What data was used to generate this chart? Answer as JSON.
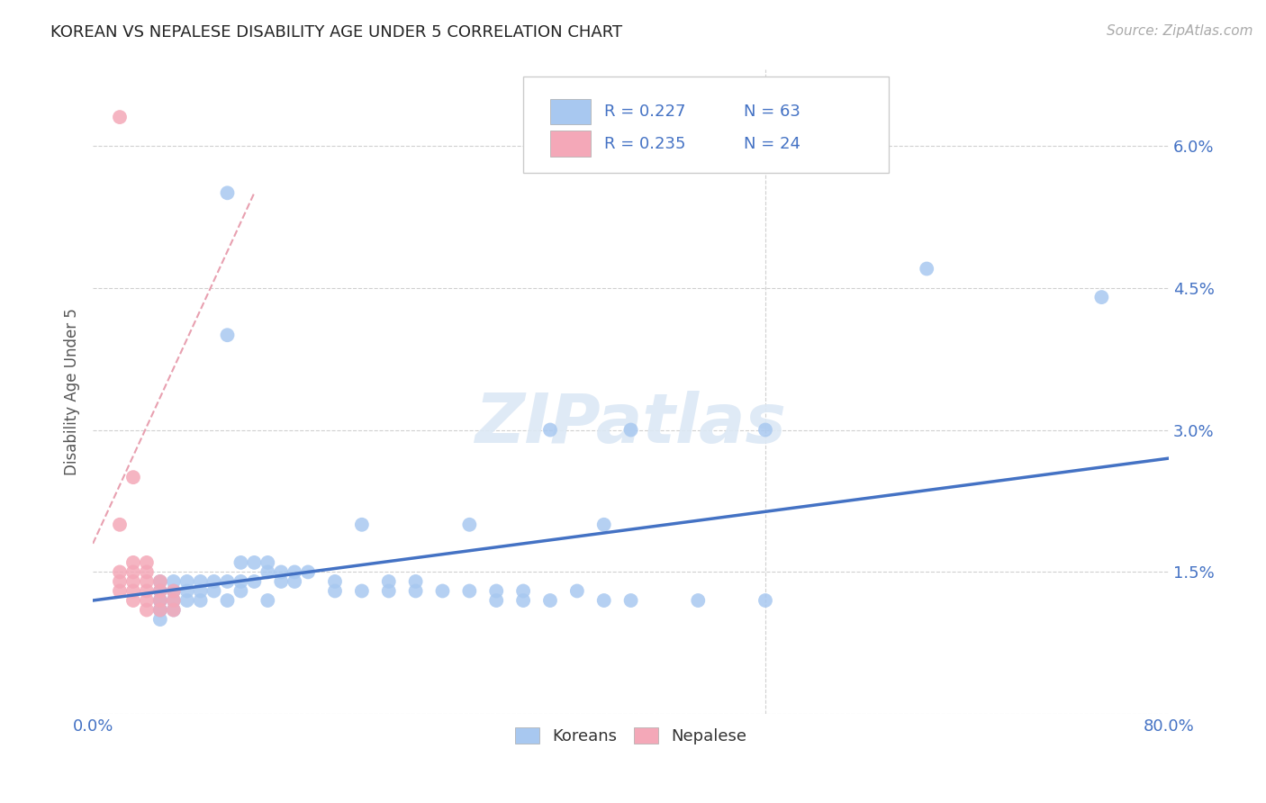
{
  "title": "KOREAN VS NEPALESE DISABILITY AGE UNDER 5 CORRELATION CHART",
  "source": "Source: ZipAtlas.com",
  "ylabel": "Disability Age Under 5",
  "xlim": [
    0.0,
    0.8
  ],
  "ylim": [
    0.0,
    0.068
  ],
  "yticks": [
    0.0,
    0.015,
    0.03,
    0.045,
    0.06
  ],
  "ytick_labels": [
    "",
    "1.5%",
    "3.0%",
    "4.5%",
    "6.0%"
  ],
  "xticks": [
    0.0,
    0.2,
    0.4,
    0.6,
    0.8
  ],
  "xtick_labels": [
    "0.0%",
    "",
    "",
    "",
    "80.0%"
  ],
  "korean_color": "#a8c8f0",
  "nepalese_color": "#f4a8b8",
  "trendline_korean_color": "#4472c4",
  "trendline_nepalese_color": "#e8a0b0",
  "background_color": "#ffffff",
  "watermark": "ZIPatlas",
  "korean_x": [
    0.05,
    0.05,
    0.05,
    0.05,
    0.05,
    0.05,
    0.05,
    0.06,
    0.06,
    0.06,
    0.06,
    0.07,
    0.07,
    0.07,
    0.08,
    0.08,
    0.08,
    0.09,
    0.09,
    0.1,
    0.1,
    0.1,
    0.1,
    0.11,
    0.11,
    0.11,
    0.12,
    0.12,
    0.13,
    0.13,
    0.13,
    0.14,
    0.14,
    0.15,
    0.15,
    0.16,
    0.18,
    0.18,
    0.2,
    0.2,
    0.22,
    0.22,
    0.24,
    0.24,
    0.26,
    0.28,
    0.28,
    0.3,
    0.3,
    0.32,
    0.32,
    0.34,
    0.34,
    0.36,
    0.38,
    0.38,
    0.4,
    0.4,
    0.45,
    0.5,
    0.5,
    0.62,
    0.75
  ],
  "korean_y": [
    0.014,
    0.013,
    0.012,
    0.012,
    0.011,
    0.011,
    0.01,
    0.014,
    0.013,
    0.012,
    0.011,
    0.014,
    0.013,
    0.012,
    0.014,
    0.013,
    0.012,
    0.014,
    0.013,
    0.055,
    0.04,
    0.014,
    0.012,
    0.016,
    0.014,
    0.013,
    0.016,
    0.014,
    0.016,
    0.015,
    0.012,
    0.015,
    0.014,
    0.015,
    0.014,
    0.015,
    0.014,
    0.013,
    0.02,
    0.013,
    0.014,
    0.013,
    0.014,
    0.013,
    0.013,
    0.02,
    0.013,
    0.013,
    0.012,
    0.013,
    0.012,
    0.03,
    0.012,
    0.013,
    0.02,
    0.012,
    0.03,
    0.012,
    0.012,
    0.03,
    0.012,
    0.047,
    0.044
  ],
  "nepalese_x": [
    0.02,
    0.02,
    0.02,
    0.02,
    0.02,
    0.03,
    0.03,
    0.03,
    0.03,
    0.03,
    0.04,
    0.04,
    0.04,
    0.04,
    0.04,
    0.05,
    0.05,
    0.05,
    0.05,
    0.06,
    0.06,
    0.06,
    0.03,
    0.04
  ],
  "nepalese_y": [
    0.063,
    0.02,
    0.015,
    0.014,
    0.013,
    0.016,
    0.015,
    0.014,
    0.013,
    0.012,
    0.016,
    0.015,
    0.014,
    0.013,
    0.012,
    0.014,
    0.013,
    0.012,
    0.011,
    0.013,
    0.012,
    0.011,
    0.025,
    0.011
  ],
  "korean_trend_x": [
    0.0,
    0.8
  ],
  "korean_trend_y": [
    0.012,
    0.027
  ],
  "nepalese_trend_x": [
    0.0,
    0.12
  ],
  "nepalese_trend_y": [
    0.018,
    0.055
  ]
}
